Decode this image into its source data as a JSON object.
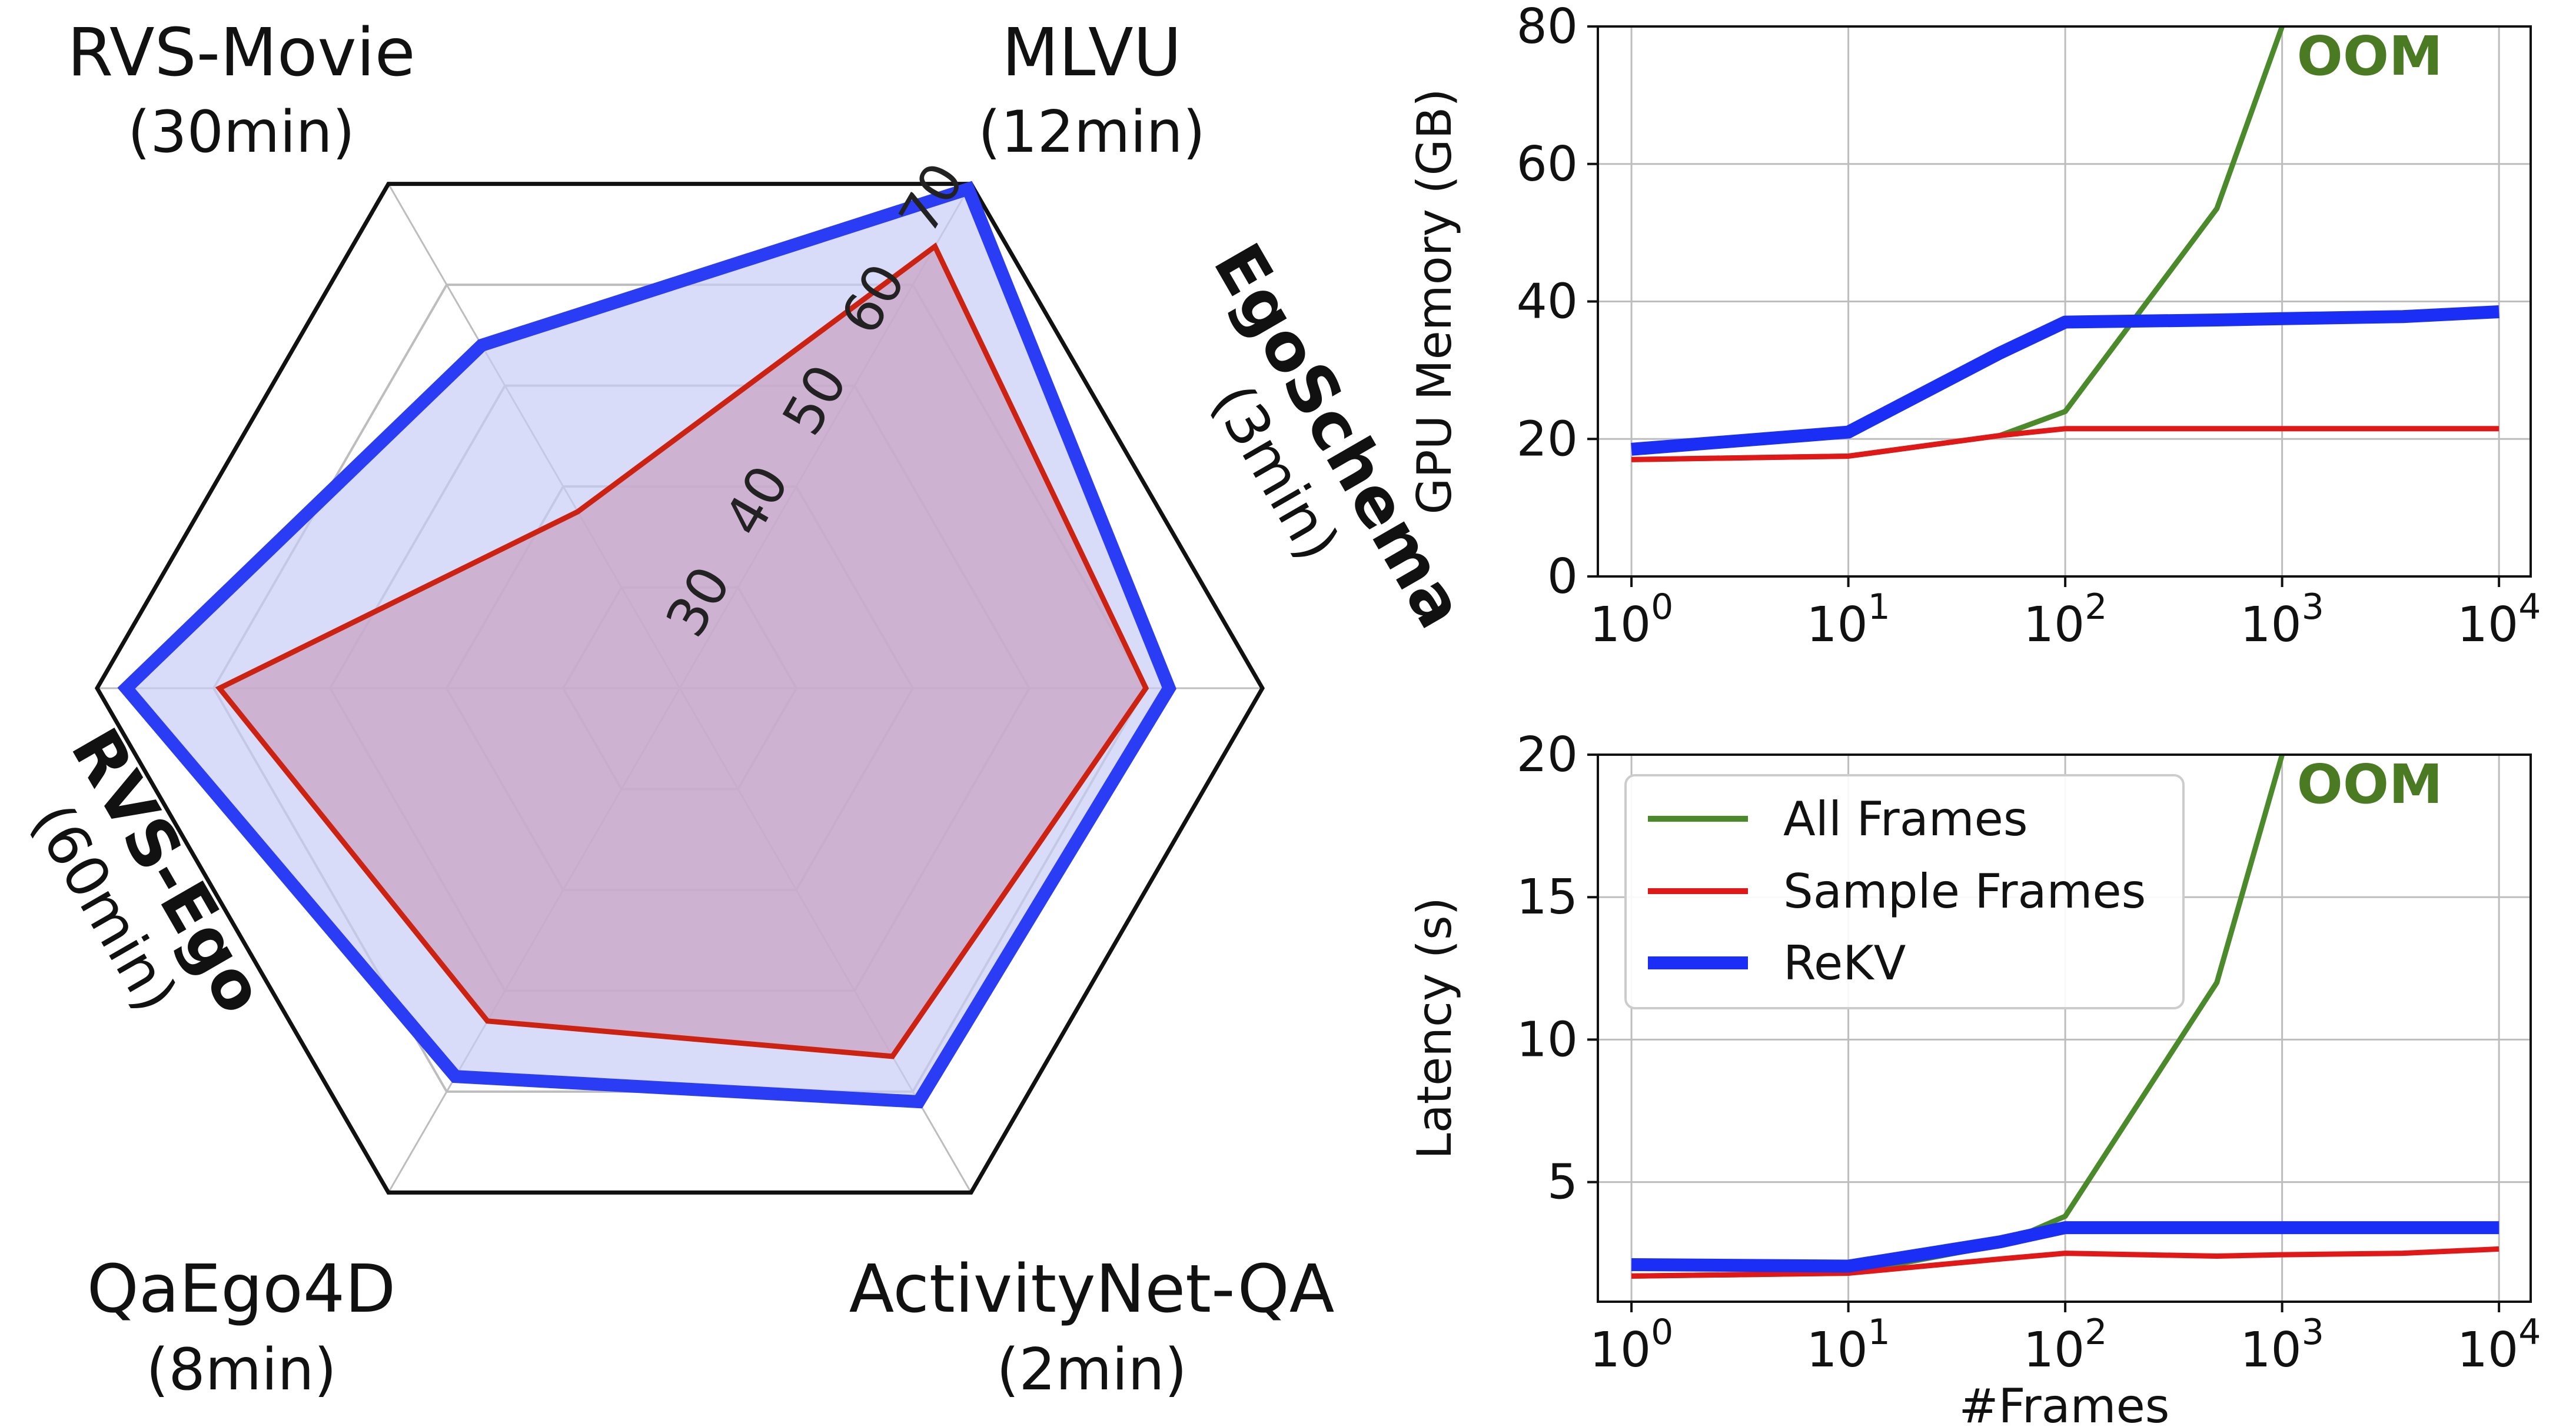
{
  "chart_data": [
    {
      "type": "radar",
      "axes": [
        {
          "name": "MLVU",
          "duration": "(12min)"
        },
        {
          "name": "EgoSchema",
          "duration": "(3min)"
        },
        {
          "name": "ActivityNet-QA",
          "duration": "(2min)"
        },
        {
          "name": "QaEgo4D",
          "duration": "(8min)"
        },
        {
          "name": "RVS-Ego",
          "duration": "(60min)"
        },
        {
          "name": "RVS-Movie",
          "duration": "(30min)"
        }
      ],
      "rlim": [
        20,
        70
      ],
      "ticks": [
        "30",
        "40",
        "50",
        "60",
        "70"
      ],
      "series": [
        {
          "values": [
            63.8,
            60.0,
            56.5,
            53.0,
            59.5,
            37.5
          ],
          "color": "#cc2211",
          "fill": "#c8a6c4"
        },
        {
          "values": [
            69.5,
            62.0,
            61.0,
            58.5,
            67.5,
            54.0
          ],
          "color": "#2b3cf5",
          "fill": "#c9cdf5"
        }
      ]
    },
    {
      "type": "line",
      "xscale": "log",
      "xlim": [
        0.7,
        14000
      ],
      "ylim": [
        0,
        80
      ],
      "xticks": [
        "1",
        "10",
        "100",
        "1000",
        "10000"
      ],
      "yticks": [
        "0",
        "20",
        "40",
        "60",
        "80"
      ],
      "ylabel": "GPU Memory (GB)",
      "annotation": "OOM",
      "grid": true,
      "series": [
        {
          "name": "All Frames",
          "color": "#4a8a2a",
          "x": [
            1,
            10,
            50,
            100,
            500,
            1000
          ],
          "y": [
            17,
            17.5,
            20.5,
            24,
            53.5,
            80
          ]
        },
        {
          "name": "Sample Frames",
          "color": "#e01818",
          "x": [
            1,
            10,
            50,
            100,
            500,
            1000,
            3600,
            10000
          ],
          "y": [
            17,
            17.5,
            20.5,
            21.5,
            21.5,
            21.5,
            21.5,
            21.5
          ]
        },
        {
          "name": "ReKV",
          "color": "#1a2ef5",
          "x": [
            1,
            10,
            50,
            100,
            500,
            1000,
            3600,
            10000
          ],
          "y": [
            18.5,
            21,
            32.5,
            37,
            37.3,
            37.5,
            37.8,
            38.5
          ]
        }
      ]
    },
    {
      "type": "line",
      "xscale": "log",
      "xlim": [
        0.7,
        14000
      ],
      "ylim": [
        0.8,
        20
      ],
      "xticks": [
        "1",
        "10",
        "100",
        "1000",
        "10000"
      ],
      "yticks": [
        "5",
        "10",
        "15",
        "20"
      ],
      "xlabel": "#Frames",
      "ylabel": "Latency (s)",
      "annotation": "OOM",
      "grid": true,
      "legend": "upper-left",
      "series": [
        {
          "name": "All Frames",
          "color": "#4a8a2a",
          "x": [
            1,
            10,
            50,
            100,
            500,
            1000
          ],
          "y": [
            1.7,
            1.8,
            2.8,
            3.8,
            12,
            20
          ]
        },
        {
          "name": "Sample Frames",
          "color": "#e01818",
          "x": [
            1,
            10,
            50,
            100,
            500,
            1000,
            3600,
            10000
          ],
          "y": [
            1.7,
            1.8,
            2.3,
            2.5,
            2.4,
            2.45,
            2.5,
            2.65
          ]
        },
        {
          "name": "ReKV",
          "color": "#1a2ef5",
          "x": [
            1,
            10,
            50,
            100,
            500,
            1000,
            3600,
            10000
          ],
          "y": [
            2.1,
            2.05,
            2.9,
            3.4,
            3.4,
            3.4,
            3.4,
            3.4
          ]
        }
      ]
    }
  ]
}
